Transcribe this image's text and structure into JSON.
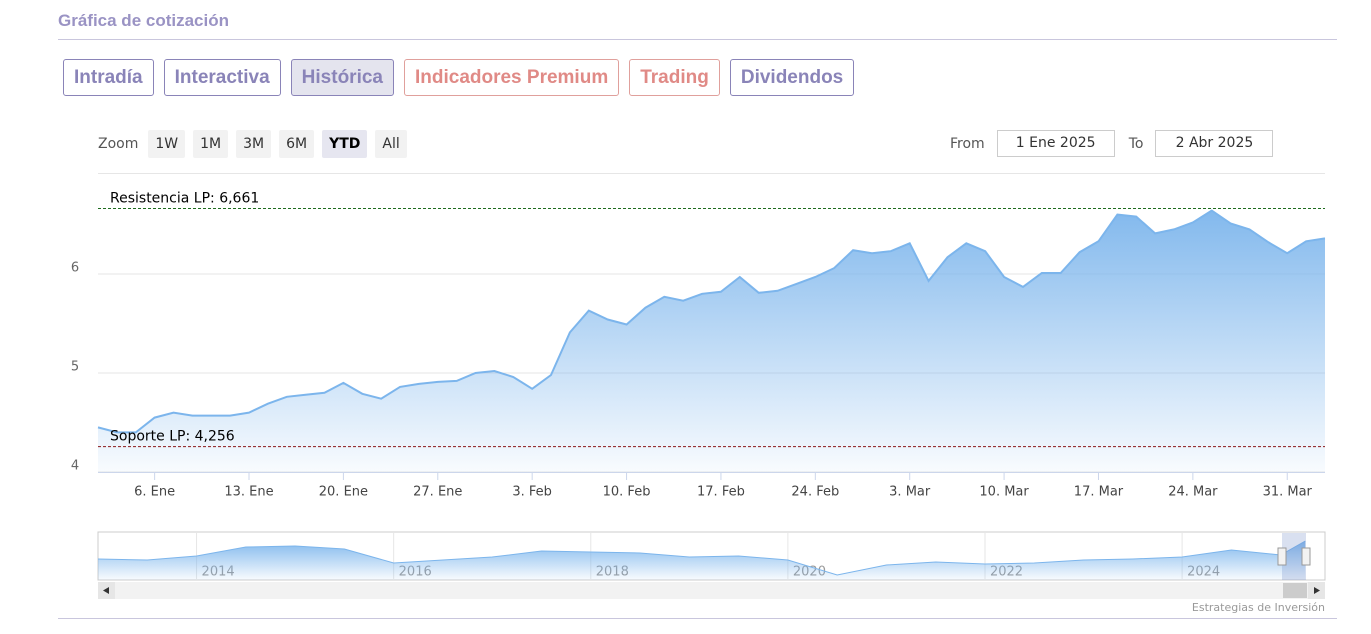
{
  "header": {
    "title": "Gráfica de cotización"
  },
  "tabs": [
    "Intradía",
    "Interactiva",
    "Histórica",
    "Indicadores Premium",
    "Trading",
    "Dividendos"
  ],
  "zoom": {
    "label": "Zoom",
    "options": [
      "1W",
      "1M",
      "3M",
      "6M",
      "YTD",
      "All"
    ]
  },
  "range": {
    "from_label": "From",
    "from": "1 Ene 2025",
    "to_label": "To",
    "to": "2 Abr 2025"
  },
  "chart_data": {
    "type": "area",
    "color": "#7cb5ec",
    "categories": [
      null,
      null,
      null,
      "6. Ene",
      null,
      null,
      null,
      null,
      "13. Ene",
      null,
      null,
      null,
      null,
      "20. Ene",
      null,
      null,
      null,
      null,
      "27. Ene",
      null,
      null,
      null,
      null,
      "3. Feb",
      null,
      null,
      null,
      null,
      "10. Feb",
      null,
      null,
      null,
      null,
      "17. Feb",
      null,
      null,
      null,
      null,
      "24. Feb",
      null,
      null,
      null,
      null,
      "3. Mar",
      null,
      null,
      null,
      null,
      "10. Mar",
      null,
      null,
      null,
      null,
      "17. Mar",
      null,
      null,
      null,
      null,
      "24. Mar",
      null,
      null,
      null,
      null,
      "31. Mar",
      null,
      null
    ],
    "values": [
      4.45,
      4.4,
      4.4,
      4.55,
      4.6,
      4.57,
      4.57,
      4.57,
      4.6,
      4.69,
      4.76,
      4.78,
      4.8,
      4.9,
      4.79,
      4.74,
      4.86,
      4.89,
      4.91,
      4.92,
      5.0,
      5.02,
      4.96,
      4.84,
      4.98,
      5.41,
      5.63,
      5.54,
      5.49,
      5.66,
      5.77,
      5.73,
      5.8,
      5.82,
      5.97,
      5.81,
      5.83,
      5.9,
      5.97,
      6.06,
      6.24,
      6.21,
      6.23,
      6.31,
      5.93,
      6.17,
      6.31,
      6.23,
      5.97,
      5.87,
      6.01,
      6.01,
      6.22,
      6.33,
      6.6,
      6.58,
      6.41,
      6.45,
      6.52,
      6.64,
      6.51,
      6.45,
      6.32,
      6.21,
      6.33,
      6.36
    ],
    "ylim": [
      4,
      7
    ],
    "yticks": [
      4,
      5,
      6
    ],
    "grid": true,
    "plot_lines": [
      {
        "value": 6.661,
        "label": "Resistencia LP: 6,661",
        "color": "#1e6b1e"
      },
      {
        "value": 4.256,
        "label": "Soporte LP: 4,256",
        "color": "#8b1a1a"
      }
    ]
  },
  "navigator": {
    "type": "area",
    "color": "#7cb5ec",
    "x": [
      2013.0,
      2013.5,
      2014.0,
      2014.5,
      2015.0,
      2015.5,
      2016.0,
      2016.5,
      2017.0,
      2017.5,
      2018.0,
      2018.5,
      2019.0,
      2019.5,
      2020.0,
      2020.5,
      2021.0,
      2021.5,
      2022.0,
      2022.5,
      2023.0,
      2023.5,
      2024.0,
      2024.5,
      2025.0,
      2025.25
    ],
    "values": [
      4.6,
      4.5,
      4.9,
      5.8,
      5.9,
      5.6,
      4.2,
      4.5,
      4.8,
      5.4,
      5.3,
      5.2,
      4.8,
      4.9,
      4.5,
      3.0,
      4.0,
      4.3,
      4.1,
      4.2,
      4.5,
      4.6,
      4.8,
      5.5,
      5.0,
      6.4
    ],
    "xlim": [
      2013,
      2025.45
    ],
    "ylim": [
      2.5,
      7.2
    ],
    "xticks": [
      2014,
      2016,
      2018,
      2020,
      2022,
      2024
    ]
  },
  "credit": "Estrategias de Inversión"
}
